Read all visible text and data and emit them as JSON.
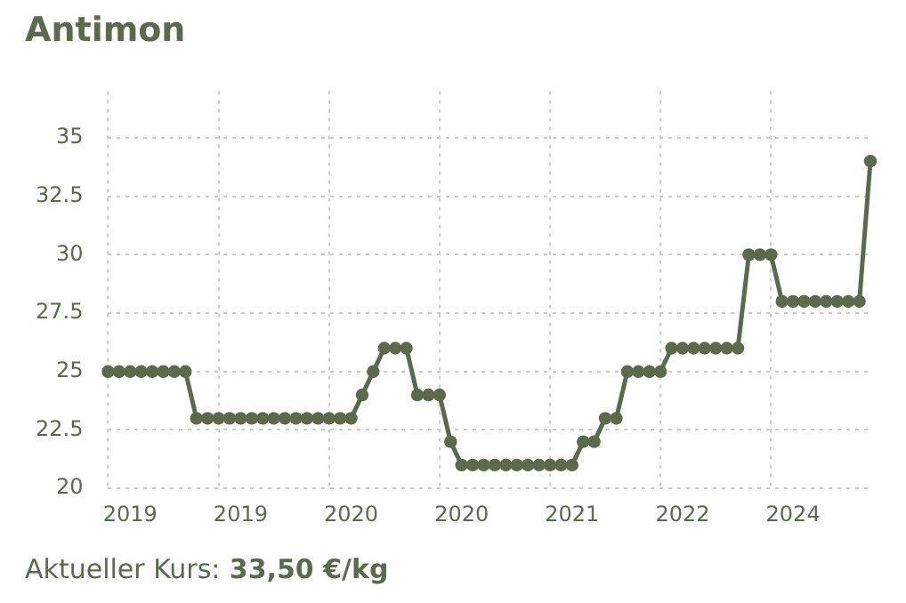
{
  "chart_data": {
    "type": "line",
    "title": "Antimon",
    "categories": [
      null,
      null,
      "2019",
      null,
      null,
      null,
      null,
      null,
      null,
      null,
      null,
      null,
      "2019",
      null,
      null,
      null,
      null,
      null,
      null,
      null,
      null,
      null,
      "2020",
      null,
      null,
      null,
      null,
      null,
      null,
      null,
      null,
      null,
      "2020",
      null,
      null,
      null,
      null,
      null,
      null,
      null,
      null,
      null,
      "2021",
      null,
      null,
      null,
      null,
      null,
      null,
      null,
      null,
      null,
      "2022",
      null,
      null,
      null,
      null,
      null,
      null,
      null,
      null,
      null,
      "2024",
      null,
      null,
      null,
      null,
      null,
      null,
      null
    ],
    "series": [
      {
        "color": "#5b6a4b",
        "values": [
          25,
          25,
          25,
          25,
          25,
          25,
          25,
          25,
          23,
          23,
          23,
          23,
          23,
          23,
          23,
          23,
          23,
          23,
          23,
          23,
          23,
          23,
          23,
          24,
          25,
          26,
          26,
          26,
          24,
          24,
          24,
          22,
          21,
          21,
          21,
          21,
          21,
          21,
          21,
          21,
          21,
          21,
          21,
          22,
          22,
          23,
          23,
          25,
          25,
          25,
          25,
          26,
          26,
          26,
          26,
          26,
          26,
          26,
          30,
          30,
          30,
          28,
          28,
          28,
          28,
          28,
          28,
          28,
          28,
          34
        ]
      }
    ],
    "ylim": [
      20,
      37
    ],
    "yticks": [
      20,
      22.5,
      25,
      27.5,
      30,
      32.5,
      35
    ],
    "grid": true,
    "legend": false,
    "marker": "circle",
    "line_style": "solid",
    "annotations": [
      "Aktueller Kurs:",
      "33,50 €/kg"
    ]
  }
}
